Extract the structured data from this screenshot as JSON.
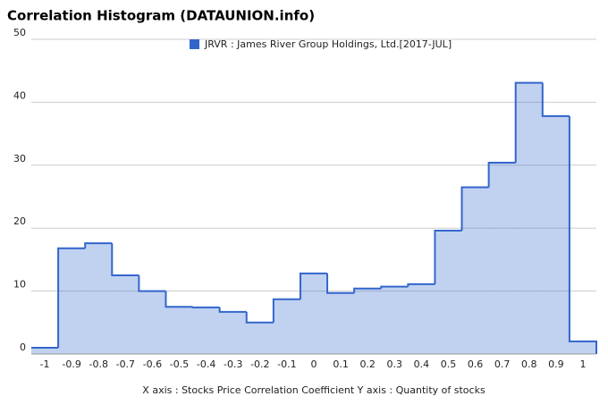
{
  "chart_data": {
    "type": "step-area",
    "title": "Correlation Histogram (DATAUNION.info)",
    "axis_label": "X axis : Stocks Price Correlation Coefficient  Y axis : Quantity of stocks",
    "x": [
      -1,
      -0.9,
      -0.8,
      -0.7,
      -0.6,
      -0.5,
      -0.4,
      -0.3,
      -0.2,
      -0.1,
      0,
      0.1,
      0.2,
      0.3,
      0.4,
      0.5,
      0.6,
      0.7,
      0.8,
      0.9,
      1
    ],
    "series": [
      {
        "name": "JRVR : James River Group Holdings, Ltd.[2017-JUL]",
        "color": "#3366cc",
        "values": [
          1,
          16.8,
          17.6,
          12.5,
          10,
          7.5,
          7.4,
          6.7,
          5,
          8.7,
          12.8,
          9.7,
          10.4,
          10.7,
          11.1,
          19.6,
          26.5,
          30.4,
          43.1,
          37.8,
          2
        ]
      }
    ],
    "xlim": [
      -1.05,
      1.05
    ],
    "ylim": [
      0,
      50
    ],
    "xticks": [
      -1,
      -0.9,
      -0.8,
      -0.7,
      -0.6,
      -0.5,
      -0.4,
      -0.3,
      -0.2,
      -0.1,
      0,
      0.1,
      0.2,
      0.3,
      0.4,
      0.5,
      0.6,
      0.7,
      0.8,
      0.9,
      1
    ],
    "yticks": [
      0,
      10,
      20,
      30,
      40,
      50
    ],
    "grid": true
  }
}
